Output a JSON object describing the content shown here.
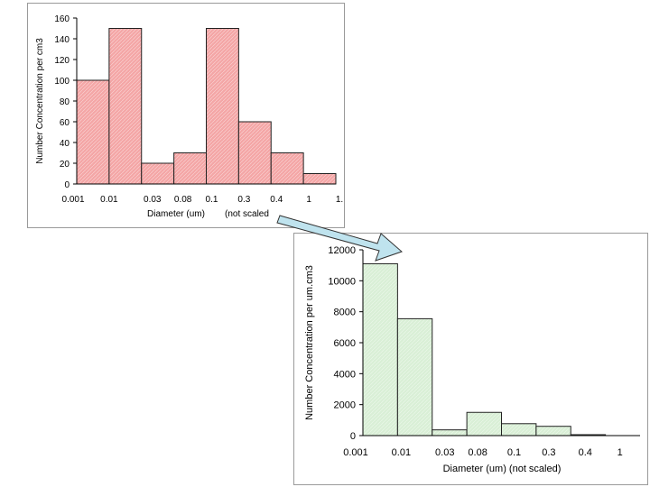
{
  "chart_data": [
    {
      "type": "bar",
      "categories": [
        "0.001",
        "0.01",
        "0.03",
        "0.08",
        "0.1",
        "0.3",
        "0.4",
        "1"
      ],
      "edge_labels": [
        "0.001",
        "0.01",
        "0.03",
        "0.08",
        "0.1",
        "0.3",
        "0.4",
        "1",
        "1."
      ],
      "values": [
        100,
        150,
        20,
        30,
        150,
        60,
        30,
        10
      ],
      "ylim": [
        0,
        160
      ],
      "yticks": [
        0,
        20,
        40,
        60,
        80,
        100,
        120,
        140,
        160
      ],
      "ylabel": "Number Concentration per cm3",
      "xlabel": "Diameter (um)",
      "xnote": "(not scaled",
      "fill": "#f4a6a6",
      "stroke": "#222222",
      "grid": false
    },
    {
      "type": "bar",
      "categories": [
        "0.001",
        "0.01",
        "0.03",
        "0.08",
        "0.1",
        "0.3",
        "0.4",
        "1"
      ],
      "edge_labels": [
        "0.001",
        "0.01",
        "0.03",
        "0.08",
        "0.1",
        "0.3",
        "0.4",
        "1"
      ],
      "values": [
        11100,
        7550,
        370,
        1500,
        770,
        600,
        60,
        0
      ],
      "ylim": [
        0,
        12000
      ],
      "yticks": [
        0,
        2000,
        4000,
        6000,
        8000,
        10000,
        12000
      ],
      "ylabel": "Number Concentration per um.cm3",
      "xlabel": "Diameter (um) (not scaled)",
      "fill": "#d9efd6",
      "stroke": "#222222",
      "grid": false
    }
  ],
  "arrow": {
    "fill": "#bfe3ee",
    "stroke": "#333333"
  }
}
